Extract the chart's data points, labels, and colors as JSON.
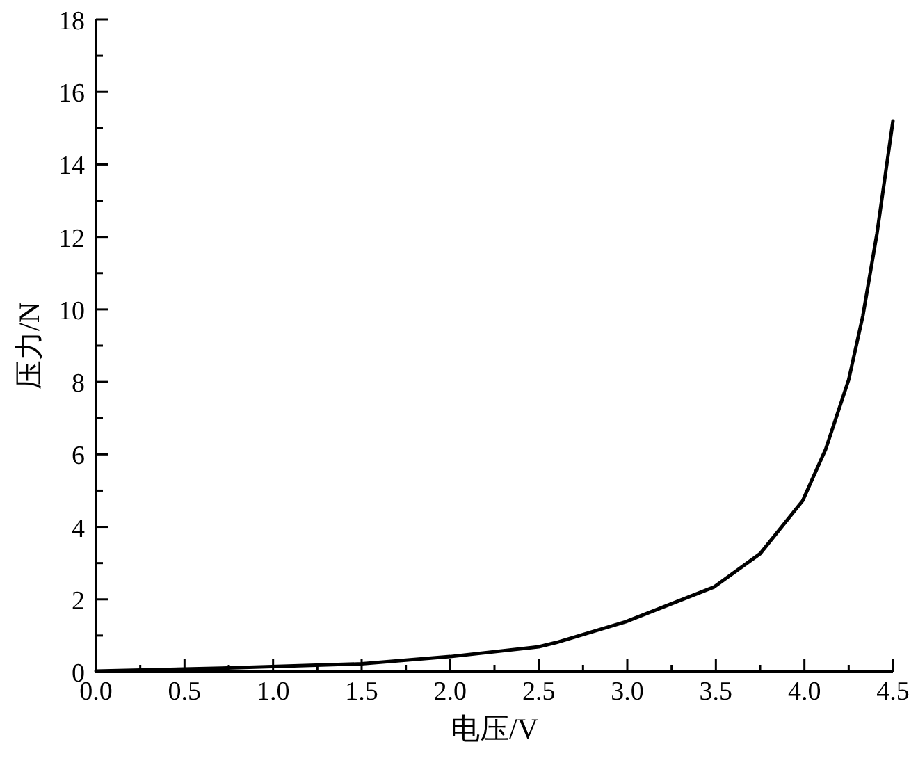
{
  "chart_data": {
    "type": "line",
    "xlabel": "电压/V",
    "ylabel": "压力/N",
    "x": [
      0,
      0.71,
      1.5,
      2.0,
      2.5,
      2.6,
      2.99,
      3.49,
      3.75,
      3.99,
      4.12,
      4.25,
      4.33,
      4.41,
      4.5
    ],
    "series": [
      {
        "color": "#000000",
        "values": [
          0.02,
          0.1,
          0.22,
          0.42,
          0.69,
          0.81,
          1.38,
          2.34,
          3.26,
          4.72,
          6.14,
          8.06,
          9.82,
          12.1,
          15.2
        ]
      }
    ],
    "xlim": [
      0,
      4.5
    ],
    "ylim": [
      0,
      18
    ],
    "xticks": [
      {
        "value": 0,
        "label": "0.0"
      },
      {
        "value": 0.25,
        "label": null
      },
      {
        "value": 0.5,
        "label": "0.5"
      },
      {
        "value": 0.75,
        "label": null
      },
      {
        "value": 1,
        "label": "1.0"
      },
      {
        "value": 1.25,
        "label": null
      },
      {
        "value": 1.5,
        "label": "1.5"
      },
      {
        "value": 1.75,
        "label": null
      },
      {
        "value": 2,
        "label": "2.0"
      },
      {
        "value": 2.25,
        "label": null
      },
      {
        "value": 2.5,
        "label": "2.5"
      },
      {
        "value": 2.75,
        "label": null
      },
      {
        "value": 3,
        "label": "3.0"
      },
      {
        "value": 3.25,
        "label": null
      },
      {
        "value": 3.5,
        "label": "3.5"
      },
      {
        "value": 3.75,
        "label": null
      },
      {
        "value": 4,
        "label": "4.0"
      },
      {
        "value": 4.25,
        "label": null
      },
      {
        "value": 4.5,
        "label": "4.5"
      }
    ],
    "yticks": [
      0,
      {
        "value": 1,
        "label": null
      },
      2,
      {
        "value": 3,
        "label": null
      },
      4,
      {
        "value": 5,
        "label": null
      },
      6,
      {
        "value": 7,
        "label": null
      },
      8,
      {
        "value": 9,
        "label": null
      },
      10,
      {
        "value": 11,
        "label": null
      },
      12,
      {
        "value": 13,
        "label": null
      },
      14,
      {
        "value": 15,
        "label": null
      },
      16,
      {
        "value": 17,
        "label": null
      },
      18
    ],
    "marker": "none",
    "line_style": "solid"
  }
}
